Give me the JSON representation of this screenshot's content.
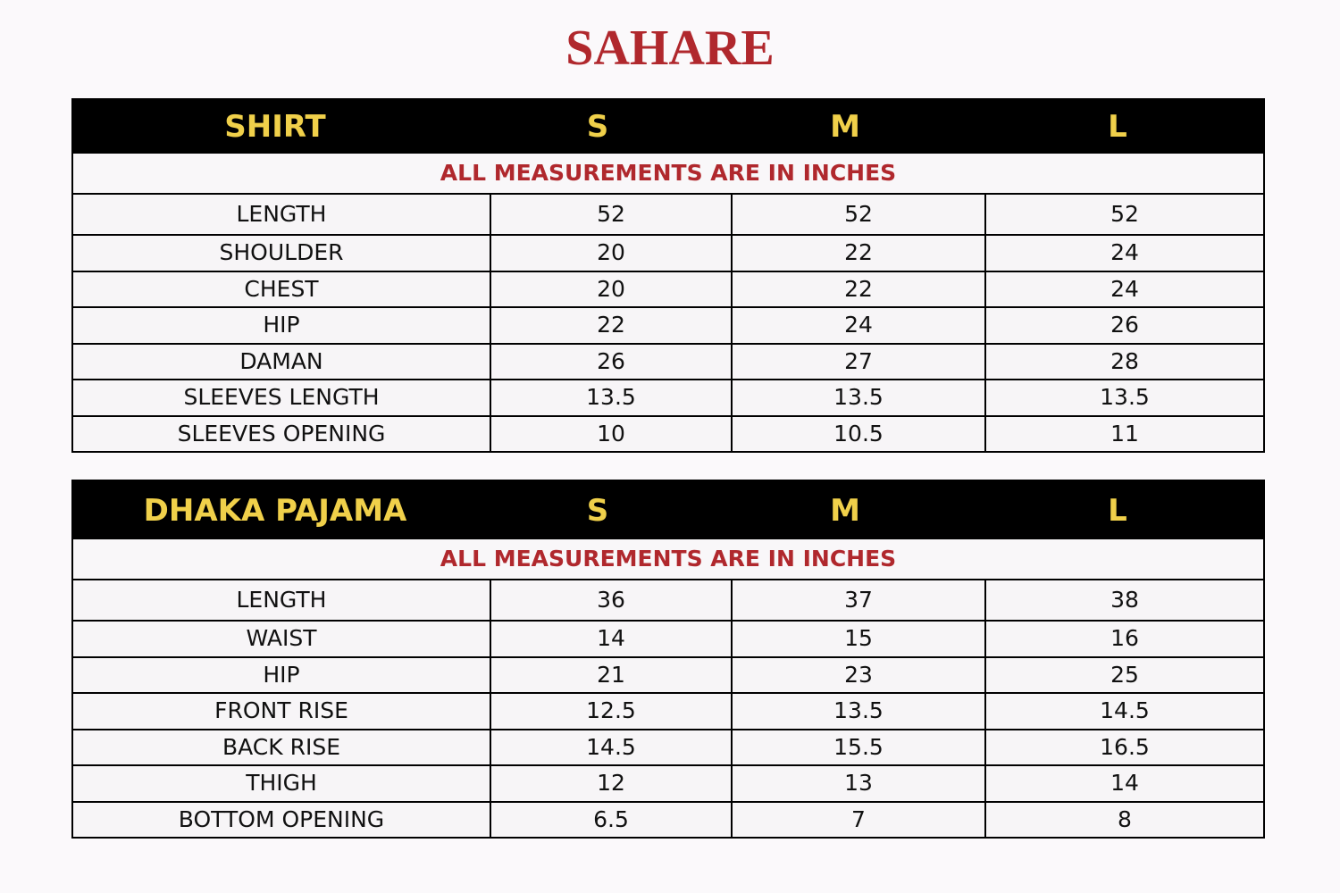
{
  "brand": "SAHARE",
  "tables": [
    {
      "title": "SHIRT",
      "sizes": [
        "S",
        "M",
        "L"
      ],
      "note": "ALL MEASUREMENTS ARE IN INCHES",
      "rows": [
        [
          "LENGTH",
          "52",
          "52",
          "52"
        ],
        [
          "SHOULDER",
          "20",
          "22",
          "24"
        ],
        [
          "CHEST",
          "20",
          "22",
          "24"
        ],
        [
          "HIP",
          "22",
          "24",
          "26"
        ],
        [
          "DAMAN",
          "26",
          "27",
          "28"
        ],
        [
          "SLEEVES LENGTH",
          "13.5",
          "13.5",
          "13.5"
        ],
        [
          "SLEEVES OPENING",
          "10",
          "10.5",
          "11"
        ]
      ]
    },
    {
      "title": "DHAKA PAJAMA",
      "sizes": [
        "S",
        "M",
        "L"
      ],
      "note": "ALL MEASUREMENTS ARE IN INCHES",
      "rows": [
        [
          "LENGTH",
          "36",
          "37",
          "38"
        ],
        [
          "WAIST",
          "14",
          "15",
          "16"
        ],
        [
          "HIP",
          "21",
          "23",
          "25"
        ],
        [
          "FRONT RISE",
          "12.5",
          "13.5",
          "14.5"
        ],
        [
          "BACK RISE",
          "14.5",
          "15.5",
          "16.5"
        ],
        [
          "THIGH",
          "12",
          "13",
          "14"
        ],
        [
          "BOTTOM OPENING",
          "6.5",
          "7",
          "8"
        ]
      ]
    }
  ],
  "colors": {
    "brand": "#b0282d",
    "header_bg": "#000000",
    "header_text": "#f0d04a"
  }
}
